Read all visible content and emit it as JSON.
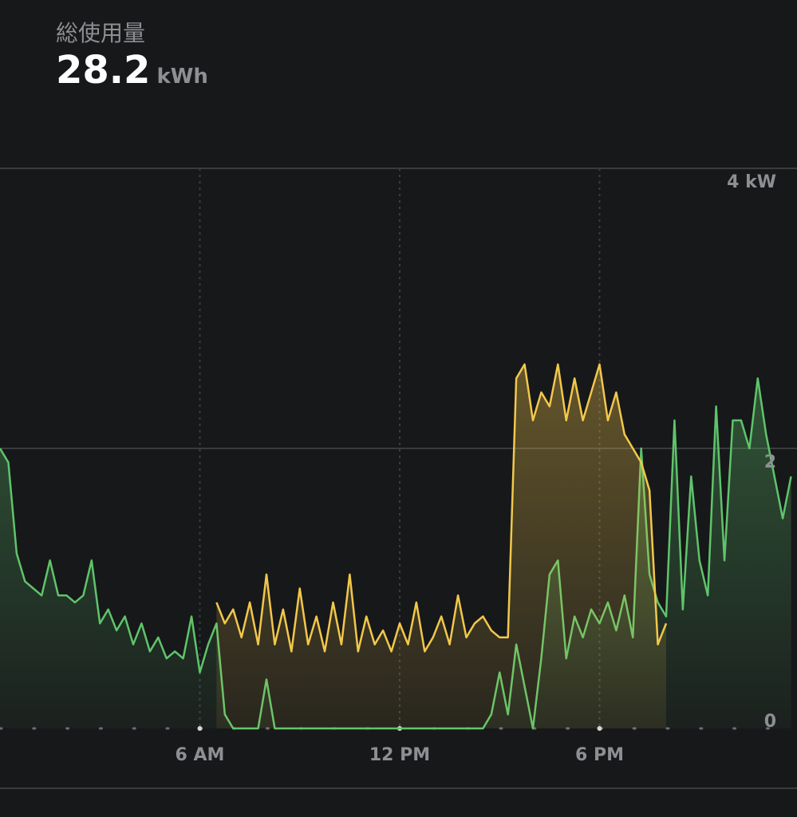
{
  "header": {
    "title": "総使用量",
    "value": "28.2",
    "unit": "kWh"
  },
  "chart_data": {
    "type": "area",
    "x": [
      0,
      0.25,
      0.5,
      0.75,
      1,
      1.25,
      1.5,
      1.75,
      2,
      2.25,
      2.5,
      2.75,
      3,
      3.25,
      3.5,
      3.75,
      4,
      4.25,
      4.5,
      4.75,
      5,
      5.25,
      5.5,
      5.75,
      6,
      6.25,
      6.5,
      6.75,
      7,
      7.25,
      7.5,
      7.75,
      8,
      8.25,
      8.5,
      8.75,
      9,
      9.25,
      9.5,
      9.75,
      10,
      10.25,
      10.5,
      10.75,
      11,
      11.25,
      11.5,
      11.75,
      12,
      12.25,
      12.5,
      12.75,
      13,
      13.25,
      13.5,
      13.75,
      14,
      14.25,
      14.5,
      14.75,
      15,
      15.25,
      15.5,
      15.75,
      16,
      16.25,
      16.5,
      16.75,
      17,
      17.25,
      17.5,
      17.75,
      18,
      18.25,
      18.5,
      18.75,
      19,
      19.25,
      19.5,
      19.75,
      20,
      20.25,
      20.5,
      20.75,
      21,
      21.25,
      21.5,
      21.75,
      22,
      22.25,
      22.5,
      22.75,
      23,
      23.25,
      23.5,
      23.75
    ],
    "series": [
      {
        "color": "#5fc46b",
        "values": [
          2.0,
          1.9,
          1.25,
          1.05,
          1.0,
          0.95,
          1.2,
          0.95,
          0.95,
          0.9,
          0.95,
          1.2,
          0.75,
          0.85,
          0.7,
          0.8,
          0.6,
          0.75,
          0.55,
          0.65,
          0.5,
          0.55,
          0.5,
          0.8,
          0.4,
          0.6,
          0.75,
          0.1,
          0,
          0,
          0,
          0,
          0.35,
          0,
          0,
          0,
          0,
          0,
          0,
          0,
          0,
          0,
          0,
          0,
          0,
          0,
          0,
          0,
          0,
          0,
          0,
          0,
          0,
          0,
          0,
          0,
          0,
          0,
          0,
          0.1,
          0.4,
          0.1,
          0.6,
          0.3,
          0,
          0.5,
          1.1,
          1.2,
          0.5,
          0.8,
          0.65,
          0.85,
          0.75,
          0.9,
          0.7,
          0.95,
          0.65,
          2.0,
          1.1,
          0.9,
          0.8,
          2.2,
          0.85,
          1.8,
          1.2,
          0.95,
          2.3,
          1.2,
          2.2,
          2.2,
          2.0,
          2.5,
          2.1,
          1.8,
          1.5,
          1.8
        ]
      },
      {
        "color": "#f2c84b",
        "values": [
          null,
          null,
          null,
          null,
          null,
          null,
          null,
          null,
          null,
          null,
          null,
          null,
          null,
          null,
          null,
          null,
          null,
          null,
          null,
          null,
          null,
          null,
          null,
          null,
          null,
          null,
          0.9,
          0.75,
          0.85,
          0.65,
          0.9,
          0.6,
          1.1,
          0.6,
          0.85,
          0.55,
          1.0,
          0.6,
          0.8,
          0.55,
          0.9,
          0.6,
          1.1,
          0.55,
          0.8,
          0.6,
          0.7,
          0.55,
          0.75,
          0.6,
          0.9,
          0.55,
          0.65,
          0.8,
          0.6,
          0.95,
          0.65,
          0.75,
          0.8,
          0.7,
          0.65,
          0.65,
          2.5,
          2.6,
          2.2,
          2.4,
          2.3,
          2.6,
          2.2,
          2.5,
          2.2,
          2.4,
          2.6,
          2.2,
          2.4,
          2.1,
          2.0,
          1.9,
          1.7,
          0.6,
          0.75,
          null,
          null,
          null,
          null,
          null,
          null,
          null,
          null,
          null,
          null,
          null,
          null,
          null,
          null,
          null
        ]
      }
    ],
    "xlim": [
      0,
      24
    ],
    "xticks": [
      {
        "value": 6,
        "label": "6 AM"
      },
      {
        "value": 12,
        "label": "12 PM"
      },
      {
        "value": 18,
        "label": "6 PM"
      }
    ],
    "ylim": [
      0,
      4
    ],
    "yticks": [
      0,
      2,
      {
        "value": 4,
        "label": "4 kW"
      }
    ],
    "grid": true
  }
}
